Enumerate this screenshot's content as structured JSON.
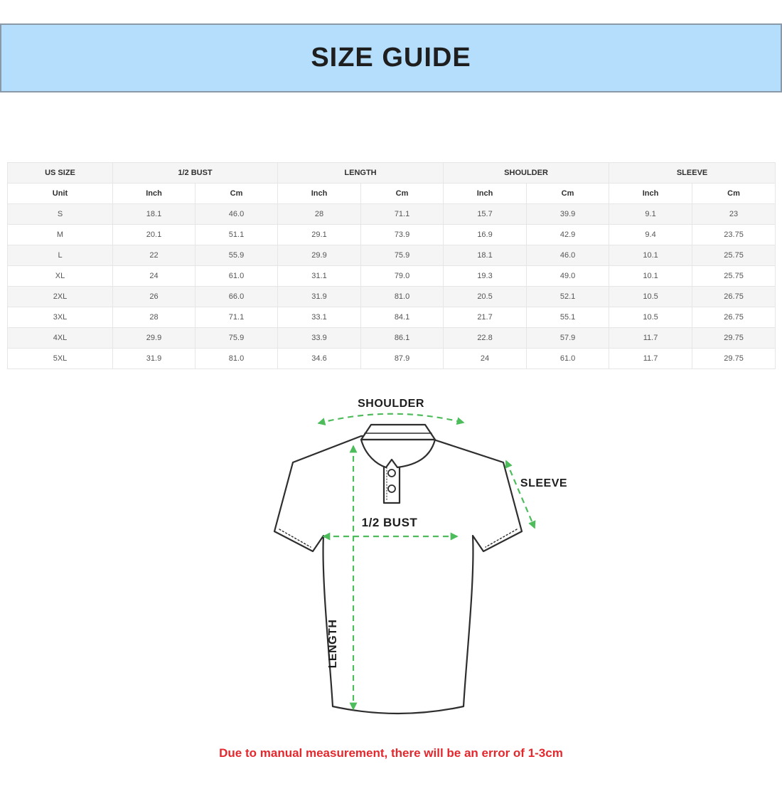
{
  "banner": {
    "title": "SIZE GUIDE",
    "background_color": "#b5defc",
    "border_color": "#8a99a8"
  },
  "table": {
    "groups": [
      {
        "label": "US SIZE",
        "span": 1
      },
      {
        "label": "1/2 BUST",
        "span": 2
      },
      {
        "label": "LENGTH",
        "span": 2
      },
      {
        "label": "SHOULDER",
        "span": 2
      },
      {
        "label": "SLEEVE",
        "span": 2
      }
    ],
    "unit_row": [
      "Unit",
      "Inch",
      "Cm",
      "Inch",
      "Cm",
      "Inch",
      "Cm",
      "Inch",
      "Cm"
    ],
    "rows": [
      {
        "size": "S",
        "values": [
          "18.1",
          "46.0",
          "28",
          "71.1",
          "15.7",
          "39.9",
          "9.1",
          "23"
        ]
      },
      {
        "size": "M",
        "values": [
          "20.1",
          "51.1",
          "29.1",
          "73.9",
          "16.9",
          "42.9",
          "9.4",
          "23.75"
        ]
      },
      {
        "size": "L",
        "values": [
          "22",
          "55.9",
          "29.9",
          "75.9",
          "18.1",
          "46.0",
          "10.1",
          "25.75"
        ]
      },
      {
        "size": "XL",
        "values": [
          "24",
          "61.0",
          "31.1",
          "79.0",
          "19.3",
          "49.0",
          "10.1",
          "25.75"
        ]
      },
      {
        "size": "2XL",
        "values": [
          "26",
          "66.0",
          "31.9",
          "81.0",
          "20.5",
          "52.1",
          "10.5",
          "26.75"
        ]
      },
      {
        "size": "3XL",
        "values": [
          "28",
          "71.1",
          "33.1",
          "84.1",
          "21.7",
          "55.1",
          "10.5",
          "26.75"
        ]
      },
      {
        "size": "4XL",
        "values": [
          "29.9",
          "75.9",
          "33.9",
          "86.1",
          "22.8",
          "57.9",
          "11.7",
          "29.75"
        ]
      },
      {
        "size": "5XL",
        "values": [
          "31.9",
          "81.0",
          "34.6",
          "87.9",
          "24",
          "61.0",
          "11.7",
          "29.75"
        ]
      }
    ]
  },
  "diagram": {
    "labels": {
      "shoulder": "SHOULDER",
      "sleeve": "SLEEVE",
      "bust": "1/2 BUST",
      "length": "LENGTH"
    },
    "arrow_color": "#4dbd5c",
    "outline_color": "#2e2e2e"
  },
  "note": {
    "text": "Due to manual measurement, there will be an error of 1-3cm",
    "color": "#e3282e"
  }
}
